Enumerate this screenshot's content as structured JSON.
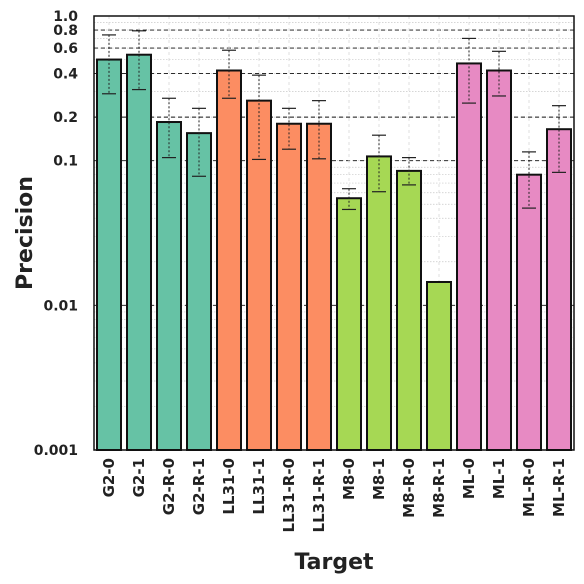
{
  "chart_data": {
    "type": "bar",
    "title": "",
    "xlabel": "Target",
    "ylabel": "Precision",
    "yscale": "log",
    "ylim": [
      0.001,
      1.0
    ],
    "grid": true,
    "categories": [
      "G2-0",
      "G2-1",
      "G2-R-0",
      "G2-R-1",
      "LL31-0",
      "LL31-1",
      "LL31-R-0",
      "LL31-R-1",
      "M8-0",
      "M8-1",
      "M8-R-0",
      "M8-R-1",
      "ML-0",
      "ML-1",
      "ML-R-0",
      "ML-R-1"
    ],
    "values": [
      0.5,
      0.54,
      0.185,
      0.155,
      0.42,
      0.26,
      0.18,
      0.18,
      0.055,
      0.107,
      0.085,
      0.0145,
      0.47,
      0.42,
      0.08,
      0.165
    ],
    "error_low": [
      0.29,
      0.31,
      0.105,
      0.078,
      0.27,
      0.102,
      0.12,
      0.103,
      0.046,
      0.061,
      0.068,
      0.0145,
      0.25,
      0.28,
      0.047,
      0.083
    ],
    "error_high": [
      0.74,
      0.79,
      0.27,
      0.23,
      0.58,
      0.39,
      0.23,
      0.26,
      0.064,
      0.15,
      0.105,
      0.0145,
      0.7,
      0.57,
      0.115,
      0.24
    ],
    "colors": [
      "#66c2a5",
      "#66c2a5",
      "#66c2a5",
      "#66c2a5",
      "#fc8d62",
      "#fc8d62",
      "#fc8d62",
      "#fc8d62",
      "#a6d854",
      "#a6d854",
      "#a6d854",
      "#a6d854",
      "#e78ac3",
      "#e78ac3",
      "#e78ac3",
      "#e78ac3"
    ],
    "y_ticks": [
      {
        "value": 0.001,
        "label": "0.001"
      },
      {
        "value": 0.01,
        "label": "0.01"
      },
      {
        "value": 0.1,
        "label": "0.1"
      },
      {
        "value": 0.2,
        "label": "0.2"
      },
      {
        "value": 0.4,
        "label": "0.4"
      },
      {
        "value": 0.6,
        "label": "0.6"
      },
      {
        "value": 0.8,
        "label": "0.8"
      },
      {
        "value": 1.0,
        "label": "1.0"
      }
    ],
    "dashed_reference_lines": [
      0.01,
      0.1,
      0.2,
      0.4,
      0.6,
      0.8,
      1.0
    ]
  }
}
